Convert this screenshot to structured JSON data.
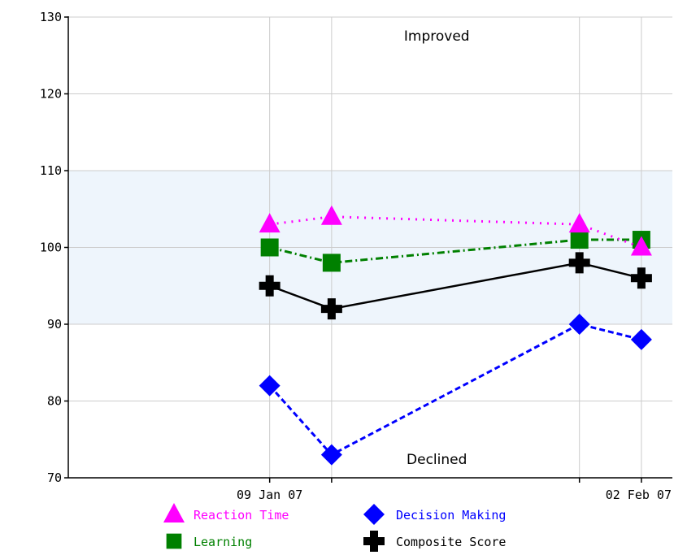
{
  "chart_data": {
    "type": "line",
    "title": "",
    "xlabel": "",
    "ylabel": "",
    "ylim": [
      70,
      130
    ],
    "yticks": [
      70,
      80,
      90,
      100,
      110,
      120,
      130
    ],
    "x_dates": [
      "2007-01-09",
      "2007-01-13",
      "2007-01-29",
      "2007-02-02"
    ],
    "x_tick_labels": [
      "09 Jan 07",
      "",
      "",
      "02 Feb 07"
    ],
    "xlim": [
      "2006-12-27",
      "2007-02-04"
    ],
    "normal_band": [
      90,
      110
    ],
    "band_color": "#eef5fc",
    "annotations": {
      "upper": "Improved",
      "lower": "Declined"
    },
    "grid": true,
    "legend_position": "bottom",
    "series": [
      {
        "name": "Reaction Time",
        "values": [
          103,
          104,
          103,
          100
        ],
        "color": "#ff00ff",
        "marker": "triangle",
        "line": "dotted"
      },
      {
        "name": "Decision Making",
        "values": [
          82,
          73,
          90,
          88
        ],
        "color": "#0000ff",
        "marker": "diamond",
        "line": "dashed"
      },
      {
        "name": "Learning",
        "values": [
          100,
          98,
          101,
          101
        ],
        "color": "#008000",
        "marker": "square",
        "line": "dashdot"
      },
      {
        "name": "Composite Score",
        "values": [
          95,
          92,
          98,
          96
        ],
        "color": "#000000",
        "marker": "cross",
        "line": "solid"
      }
    ]
  }
}
